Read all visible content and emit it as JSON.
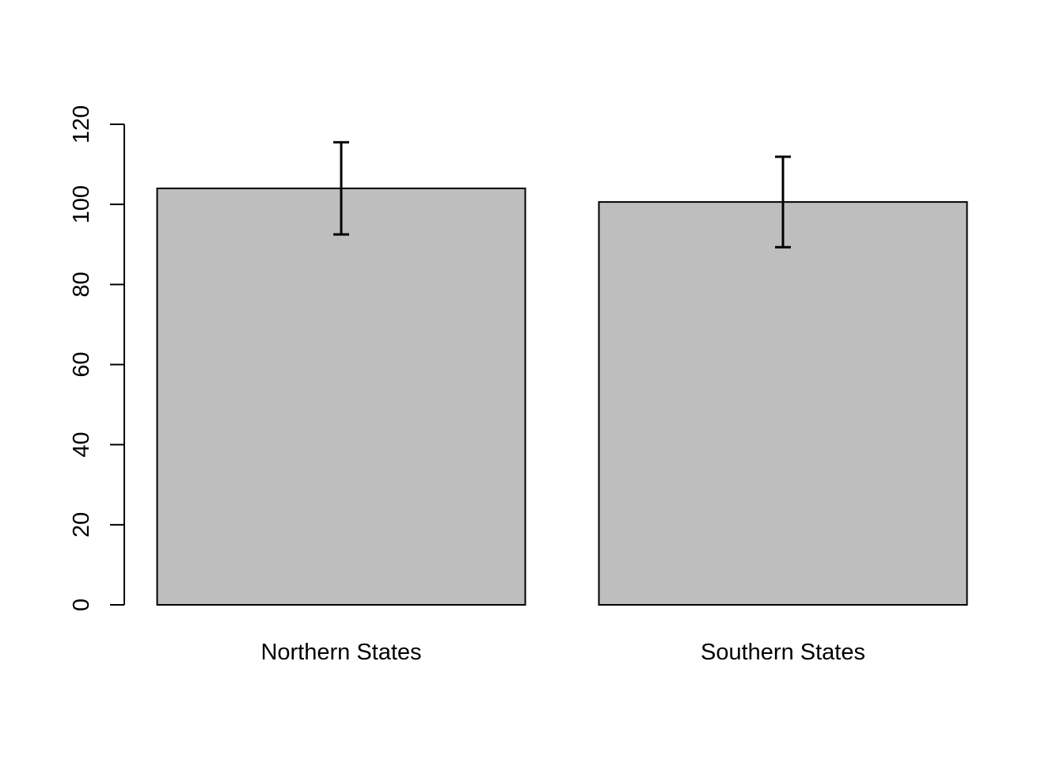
{
  "chart_data": {
    "type": "bar",
    "title": "",
    "xlabel": "",
    "ylabel": "",
    "categories": [
      "Northern States",
      "Southern States"
    ],
    "values": [
      104,
      100.6
    ],
    "error_bars": [
      {
        "low": 92.5,
        "high": 115.5
      },
      {
        "low": 89.3,
        "high": 111.9
      }
    ],
    "ylim": [
      0,
      120
    ],
    "yticks": [
      0,
      20,
      40,
      60,
      80,
      100,
      120
    ],
    "grid": false,
    "legend": "none",
    "colors": {
      "bar_fill": "#bebebe",
      "bar_stroke": "#000000",
      "axis": "#000000",
      "error_bar": "#000000",
      "background": "#ffffff"
    }
  }
}
